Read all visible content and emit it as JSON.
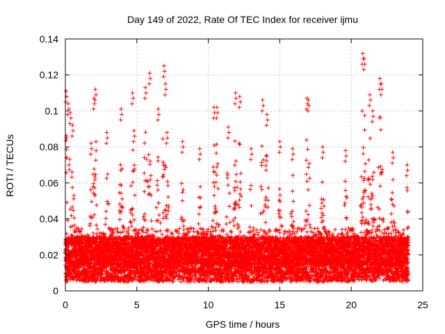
{
  "chart_data": {
    "type": "scatter",
    "title": "Day 149 of 2022, Rate Of TEC Index for receiver ijmu",
    "xlabel": "GPS time / hours",
    "ylabel": "ROTI / TECUs",
    "xlim": [
      0,
      25
    ],
    "ylim": [
      0,
      0.14
    ],
    "x_ticks": [
      0,
      5,
      10,
      15,
      20,
      25
    ],
    "x_tick_labels": [
      "0",
      "5",
      "10",
      "15",
      "20",
      "25"
    ],
    "y_ticks": [
      0,
      0.02,
      0.04,
      0.06,
      0.08,
      0.1,
      0.12,
      0.14
    ],
    "y_tick_labels": [
      "0",
      "0.02",
      "0.04",
      "0.06",
      "0.08",
      "0.1",
      "0.12",
      "0.14"
    ],
    "grid": true,
    "marker": "+",
    "color": "#ff0000",
    "series": [
      {
        "name": "ROTI",
        "data_range_hours": [
          0,
          24
        ],
        "baseline_range": [
          0.005,
          0.03
        ],
        "peaks": [
          {
            "x": 0.05,
            "y": 0.111
          },
          {
            "x": 0.2,
            "y": 0.104
          },
          {
            "x": 0.35,
            "y": 0.099
          },
          {
            "x": 0.5,
            "y": 0.092
          },
          {
            "x": 1.8,
            "y": 0.082
          },
          {
            "x": 2.0,
            "y": 0.107
          },
          {
            "x": 2.1,
            "y": 0.112
          },
          {
            "x": 2.9,
            "y": 0.088
          },
          {
            "x": 3.9,
            "y": 0.101
          },
          {
            "x": 4.7,
            "y": 0.11
          },
          {
            "x": 4.8,
            "y": 0.089
          },
          {
            "x": 5.6,
            "y": 0.113
          },
          {
            "x": 5.9,
            "y": 0.121
          },
          {
            "x": 6.5,
            "y": 0.101
          },
          {
            "x": 6.9,
            "y": 0.125
          },
          {
            "x": 7.0,
            "y": 0.115
          },
          {
            "x": 7.1,
            "y": 0.088
          },
          {
            "x": 8.2,
            "y": 0.083
          },
          {
            "x": 9.4,
            "y": 0.079
          },
          {
            "x": 10.4,
            "y": 0.102
          },
          {
            "x": 10.6,
            "y": 0.102
          },
          {
            "x": 11.4,
            "y": 0.091
          },
          {
            "x": 11.9,
            "y": 0.11
          },
          {
            "x": 12.2,
            "y": 0.108
          },
          {
            "x": 13.0,
            "y": 0.079
          },
          {
            "x": 13.8,
            "y": 0.106
          },
          {
            "x": 14.1,
            "y": 0.098
          },
          {
            "x": 15.0,
            "y": 0.083
          },
          {
            "x": 15.9,
            "y": 0.079
          },
          {
            "x": 16.9,
            "y": 0.107
          },
          {
            "x": 17.0,
            "y": 0.106
          },
          {
            "x": 18.0,
            "y": 0.08
          },
          {
            "x": 19.6,
            "y": 0.078
          },
          {
            "x": 20.8,
            "y": 0.132
          },
          {
            "x": 20.9,
            "y": 0.129
          },
          {
            "x": 21.3,
            "y": 0.109
          },
          {
            "x": 21.5,
            "y": 0.1
          },
          {
            "x": 22.0,
            "y": 0.118
          },
          {
            "x": 22.1,
            "y": 0.115
          },
          {
            "x": 22.9,
            "y": 0.077
          },
          {
            "x": 23.9,
            "y": 0.07
          }
        ]
      }
    ]
  }
}
